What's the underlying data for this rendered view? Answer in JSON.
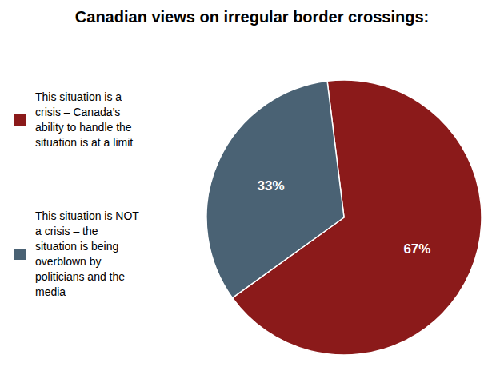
{
  "chart_data": {
    "type": "pie",
    "title": "Canadian views on irregular border crossings:",
    "categories": [
      "This situation is a\ncrisis – Canada’s\nability to handle the\nsituation is at a limit",
      "This situation is NOT\na crisis – the\nsituation is being\noverblown by\npoliticians and the\nmedia"
    ],
    "values": [
      67,
      33
    ],
    "value_labels": [
      "67%",
      "33%"
    ],
    "colors": [
      "#8B1A1A",
      "#4A6274"
    ],
    "data_labels": true,
    "legend": "left"
  }
}
